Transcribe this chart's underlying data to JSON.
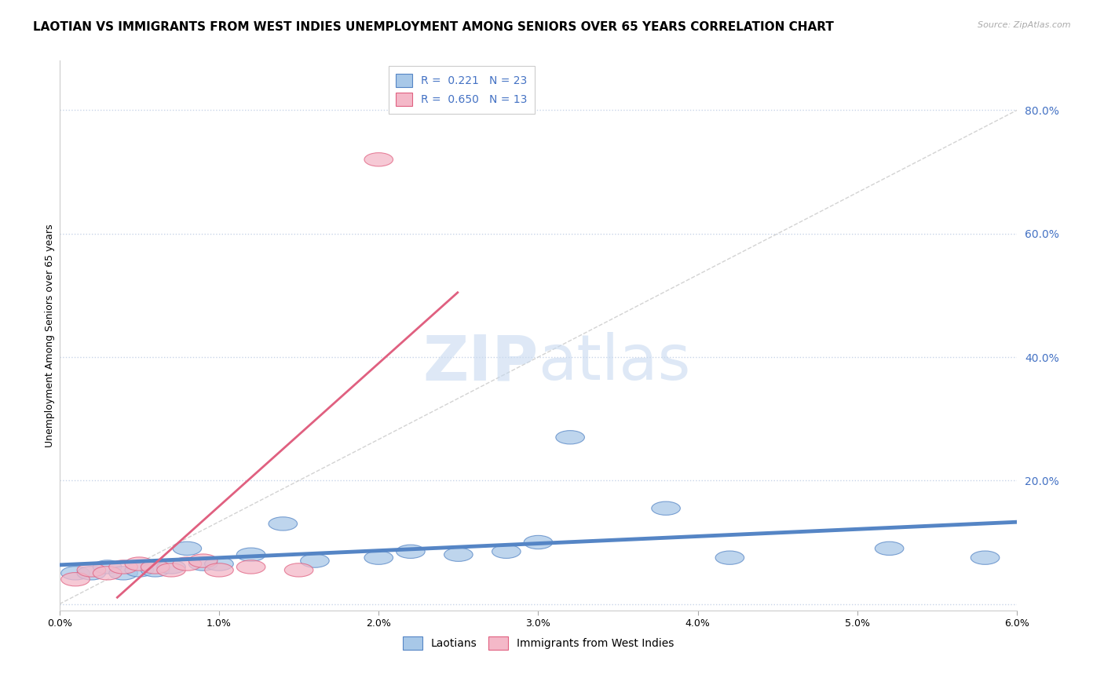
{
  "title": "LAOTIAN VS IMMIGRANTS FROM WEST INDIES UNEMPLOYMENT AMONG SENIORS OVER 65 YEARS CORRELATION CHART",
  "source": "Source: ZipAtlas.com",
  "ylabel": "Unemployment Among Seniors over 65 years",
  "xlabel": "",
  "xlim": [
    0.0,
    0.06
  ],
  "ylim": [
    -0.01,
    0.88
  ],
  "xticks": [
    0.0,
    0.01,
    0.02,
    0.03,
    0.04,
    0.05,
    0.06
  ],
  "yticks": [
    0.0,
    0.2,
    0.4,
    0.6,
    0.8
  ],
  "xticklabels": [
    "0.0%",
    "1.0%",
    "2.0%",
    "3.0%",
    "4.0%",
    "5.0%",
    "6.0%"
  ],
  "yticklabels": [
    "",
    "20.0%",
    "40.0%",
    "60.0%",
    "80.0%"
  ],
  "legend_r1": "R =  0.221",
  "legend_n1": "N = 23",
  "legend_r2": "R =  0.650",
  "legend_n2": "N = 13",
  "color_laotian": "#a8c8e8",
  "color_westindies": "#f4b8c8",
  "color_line_laotian": "#5585c5",
  "color_line_westindies": "#e06080",
  "color_refline": "#c8c8c8",
  "laotian_x": [
    0.001,
    0.002,
    0.003,
    0.004,
    0.005,
    0.006,
    0.007,
    0.008,
    0.009,
    0.01,
    0.012,
    0.014,
    0.016,
    0.02,
    0.022,
    0.025,
    0.028,
    0.03,
    0.032,
    0.038,
    0.042,
    0.052,
    0.058
  ],
  "laotian_y": [
    0.05,
    0.05,
    0.06,
    0.05,
    0.055,
    0.055,
    0.06,
    0.09,
    0.065,
    0.065,
    0.08,
    0.13,
    0.07,
    0.075,
    0.085,
    0.08,
    0.085,
    0.1,
    0.27,
    0.155,
    0.075,
    0.09,
    0.075
  ],
  "westindies_x": [
    0.001,
    0.002,
    0.003,
    0.004,
    0.005,
    0.006,
    0.007,
    0.008,
    0.009,
    0.01,
    0.012,
    0.015,
    0.02
  ],
  "westindies_y": [
    0.04,
    0.055,
    0.05,
    0.06,
    0.065,
    0.06,
    0.055,
    0.065,
    0.07,
    0.055,
    0.06,
    0.055,
    0.72
  ],
  "watermark_zip": "ZIP",
  "watermark_atlas": "atlas",
  "background_color": "#ffffff",
  "grid_color": "#c8d4e8",
  "title_fontsize": 11,
  "axis_fontsize": 9,
  "legend_fontsize": 10,
  "tick_label_color": "#4472c4"
}
